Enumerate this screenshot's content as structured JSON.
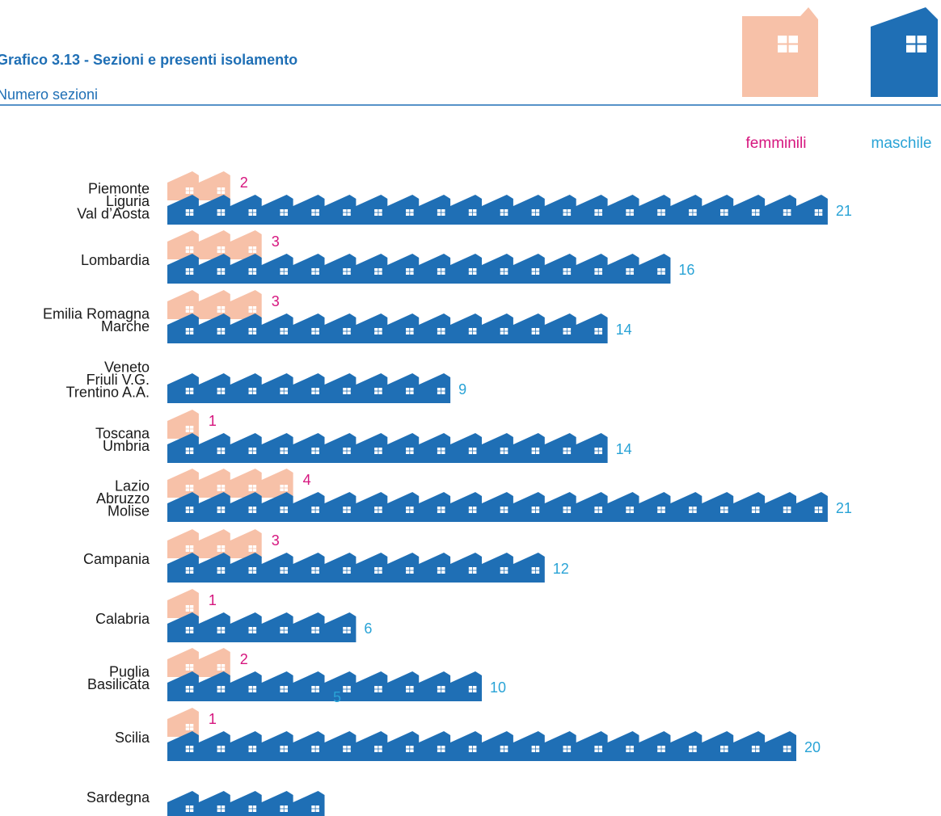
{
  "chart_data": {
    "type": "bar",
    "title": "Grafico 3.13 - Sezioni e presenti isolamento",
    "subtitle": "Numero sezioni",
    "legend": [
      "femminili",
      "maschile"
    ],
    "legend_position": "top-right",
    "colors": {
      "femminili": "#f7c1a8",
      "maschile": "#1f6fb5",
      "femminili_text": "#d6157e",
      "maschile_text": "#29a3d6",
      "title": "#1f6fb5"
    },
    "categories": [
      [
        "Piemonte",
        "Liguria",
        "Val d’Aosta"
      ],
      [
        "Lombardia"
      ],
      [
        "Emilia Romagna",
        "Marche"
      ],
      [
        "Veneto",
        "Friuli V.G.",
        "Trentino A.A."
      ],
      [
        "Toscana",
        "Umbria"
      ],
      [
        "Lazio",
        "Abruzzo",
        "Molise"
      ],
      [
        "Campania"
      ],
      [
        "Calabria"
      ],
      [
        "Puglia",
        "Basilicata"
      ],
      [
        "Scilia"
      ],
      [
        "Sardegna"
      ]
    ],
    "series": [
      {
        "name": "femminili",
        "values": [
          2,
          3,
          3,
          0,
          1,
          4,
          3,
          1,
          2,
          1,
          0
        ]
      },
      {
        "name": "maschile",
        "values": [
          21,
          16,
          14,
          9,
          14,
          21,
          12,
          6,
          10,
          20,
          5
        ]
      }
    ]
  }
}
